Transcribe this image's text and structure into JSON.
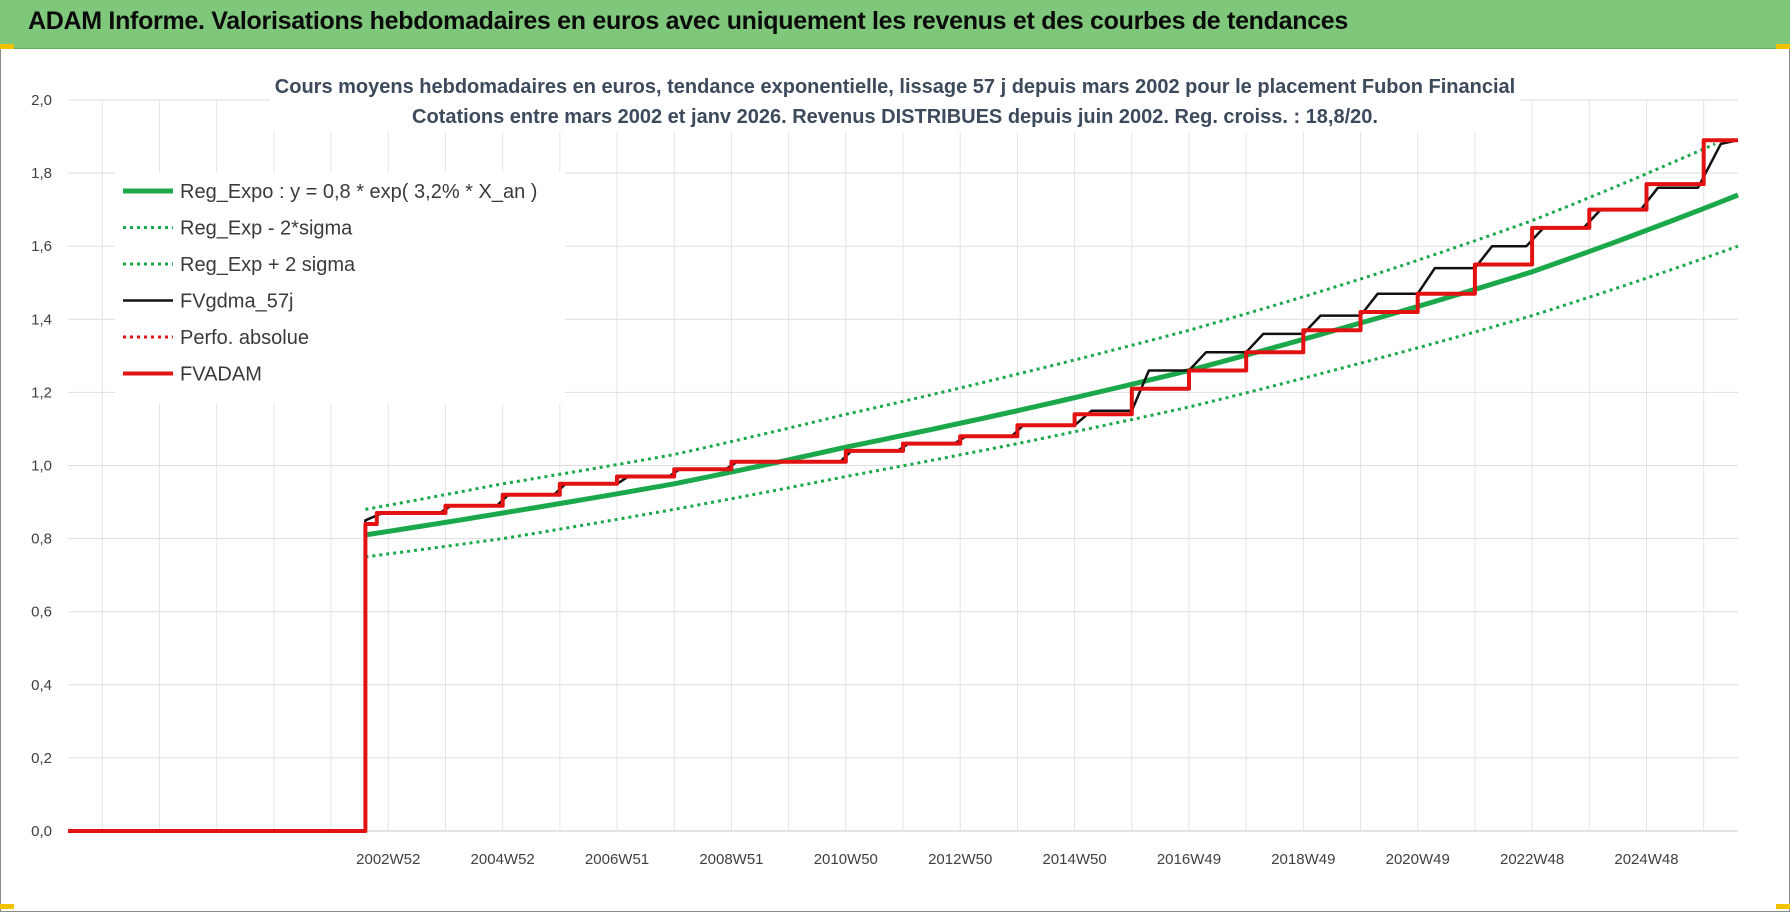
{
  "header": {
    "title": "ADAM Informe. Valorisations hebdomadaires en euros avec uniquement les revenus et des courbes de tendances"
  },
  "colors": {
    "header_bg": "#7fc77b",
    "green": "#1aa84a",
    "red": "#e31212",
    "black": "#111111"
  },
  "chart_data": {
    "type": "line",
    "title": "Cours moyens hebdomadaires en euros, tendance exponentielle, lissage 57 j depuis mars 2002 pour le placement Fubon Financial",
    "subtitle": "Cotations entre mars 2002 et janv 2026. Revenus DISTRIBUES depuis juin 2002. Reg. croiss. : 18,8/20.",
    "xlabel": "",
    "ylabel": "",
    "ylim": [
      0,
      2.0
    ],
    "yticks": [
      "0,0",
      "0,2",
      "0,4",
      "0,6",
      "0,8",
      "1,0",
      "1,2",
      "1,4",
      "1,6",
      "1,8",
      "2,0"
    ],
    "xlim": [
      1997.4,
      2026.6
    ],
    "xticks": [
      {
        "label": "2002W52",
        "x": 2003.0
      },
      {
        "label": "2004W52",
        "x": 2005.0
      },
      {
        "label": "2006W51",
        "x": 2007.0
      },
      {
        "label": "2008W51",
        "x": 2009.0
      },
      {
        "label": "2010W50",
        "x": 2011.0
      },
      {
        "label": "2012W50",
        "x": 2013.0
      },
      {
        "label": "2014W50",
        "x": 2015.0
      },
      {
        "label": "2016W49",
        "x": 2017.0
      },
      {
        "label": "2018W49",
        "x": 2019.0
      },
      {
        "label": "2020W49",
        "x": 2021.0
      },
      {
        "label": "2022W48",
        "x": 2023.0
      },
      {
        "label": "2024W48",
        "x": 2025.0
      }
    ],
    "grid": true,
    "legend_position": "top-left",
    "series": [
      {
        "name": "Reg_Expo : y = 0,8 * exp( 3,2% *  X_an )",
        "style": "solid-thick",
        "color": "#1aa84a",
        "x": [
          2002.6,
          2005,
          2008,
          2011,
          2014,
          2017,
          2020,
          2023,
          2026.6
        ],
        "y": [
          0.81,
          0.87,
          0.95,
          1.05,
          1.15,
          1.26,
          1.39,
          1.53,
          1.74
        ]
      },
      {
        "name": "Reg_Exp - 2*sigma",
        "style": "dotted",
        "color": "#1aa84a",
        "x": [
          2002.6,
          2005,
          2008,
          2011,
          2014,
          2017,
          2020,
          2023,
          2026.6
        ],
        "y": [
          0.75,
          0.8,
          0.88,
          0.97,
          1.06,
          1.16,
          1.28,
          1.41,
          1.6
        ]
      },
      {
        "name": "Reg_Exp + 2 sigma",
        "style": "dotted",
        "color": "#1aa84a",
        "x": [
          2002.6,
          2005,
          2008,
          2011,
          2014,
          2017,
          2020,
          2023,
          2026.2
        ],
        "y": [
          0.88,
          0.95,
          1.03,
          1.14,
          1.25,
          1.37,
          1.51,
          1.67,
          1.88
        ]
      },
      {
        "name": "FVgdma_57j",
        "style": "solid-thin",
        "color": "#111111",
        "x": [
          1997.4,
          2002.6,
          2002.6,
          2002.9,
          2003.9,
          2004.1,
          2004.9,
          2005.1,
          2005.9,
          2006.1,
          2007.0,
          2007.2,
          2007.9,
          2008.1,
          2008.9,
          2009.1,
          2010.9,
          2011.1,
          2011.9,
          2012.1,
          2012.9,
          2013.1,
          2013.9,
          2014.1,
          2015.0,
          2015.3,
          2016.0,
          2016.3,
          2017.0,
          2017.3,
          2018.0,
          2018.3,
          2019.0,
          2019.3,
          2020.0,
          2020.3,
          2021.0,
          2021.3,
          2022.0,
          2022.3,
          2022.9,
          2023.2,
          2023.9,
          2024.2,
          2024.9,
          2025.2,
          2025.9,
          2026.3,
          2026.6
        ],
        "y": [
          0,
          0,
          0.85,
          0.87,
          0.87,
          0.89,
          0.89,
          0.92,
          0.92,
          0.95,
          0.95,
          0.97,
          0.97,
          0.99,
          0.99,
          1.01,
          1.01,
          1.04,
          1.04,
          1.06,
          1.06,
          1.08,
          1.08,
          1.11,
          1.11,
          1.15,
          1.15,
          1.26,
          1.26,
          1.31,
          1.31,
          1.36,
          1.36,
          1.41,
          1.41,
          1.47,
          1.47,
          1.54,
          1.54,
          1.6,
          1.6,
          1.65,
          1.65,
          1.7,
          1.7,
          1.76,
          1.76,
          1.88,
          1.89
        ]
      },
      {
        "name": "Perfo. absolue",
        "style": "dotted",
        "color": "#e31212",
        "x": [],
        "y": []
      },
      {
        "name": "FVADAM",
        "style": "step-thick",
        "color": "#e31212",
        "x": [
          1997.4,
          2002.6,
          2002.6,
          2002.8,
          2004.0,
          2005.0,
          2006.0,
          2007.0,
          2008.0,
          2009.0,
          2011.0,
          2012.0,
          2013.0,
          2014.0,
          2015.0,
          2016.0,
          2017.0,
          2018.0,
          2019.0,
          2020.0,
          2021.0,
          2022.0,
          2023.0,
          2024.0,
          2025.0,
          2026.0,
          2026.6
        ],
        "y": [
          0,
          0,
          0.84,
          0.87,
          0.89,
          0.92,
          0.95,
          0.97,
          0.99,
          1.01,
          1.04,
          1.06,
          1.08,
          1.11,
          1.14,
          1.21,
          1.26,
          1.31,
          1.37,
          1.42,
          1.47,
          1.55,
          1.65,
          1.7,
          1.77,
          1.89,
          1.89
        ]
      }
    ]
  }
}
